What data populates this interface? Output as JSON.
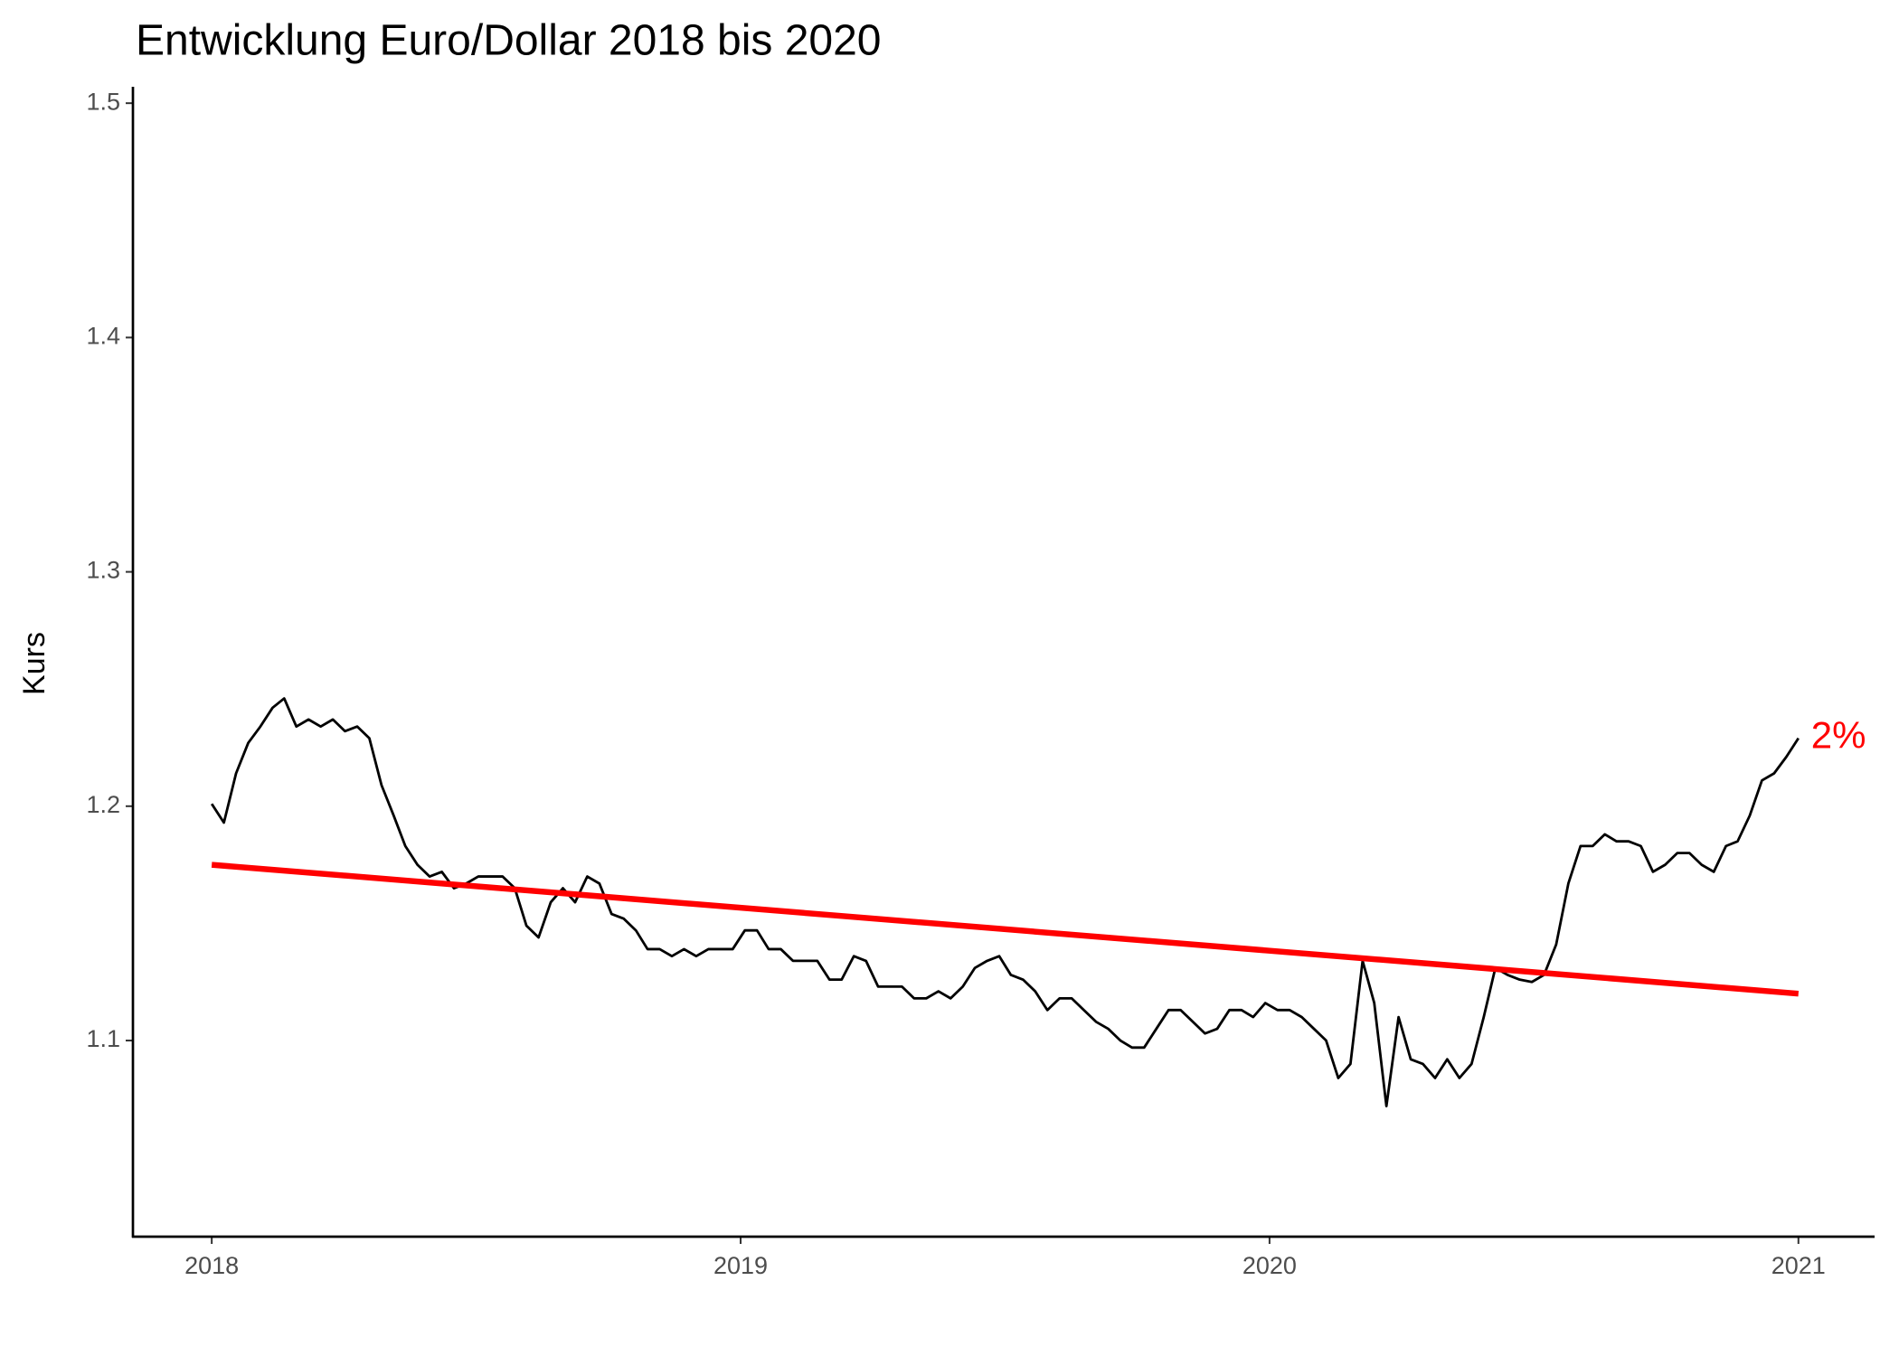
{
  "chart_data": {
    "type": "line",
    "title": "Entwicklung Euro/Dollar 2018 bis 2020",
    "y_label": "Kurs",
    "annotation": {
      "text": "2%",
      "color": "#ff0000"
    },
    "xlim": [
      2017.851,
      2021.144
    ],
    "xticks": [
      2018,
      2019,
      2020,
      2021
    ],
    "ylim": [
      1.0163,
      1.507
    ],
    "yticks": [
      1.1,
      1.2,
      1.3,
      1.4,
      1.5
    ],
    "grid": false,
    "series": [
      {
        "color": "#000000",
        "x": [
          2018.0,
          2018.023,
          2018.046,
          2018.069,
          2018.092,
          2018.115,
          2018.137,
          2018.16,
          2018.183,
          2018.206,
          2018.229,
          2018.252,
          2018.275,
          2018.298,
          2018.321,
          2018.344,
          2018.366,
          2018.389,
          2018.412,
          2018.435,
          2018.458,
          2018.481,
          2018.504,
          2018.527,
          2018.55,
          2018.573,
          2018.595,
          2018.618,
          2018.641,
          2018.664,
          2018.687,
          2018.71,
          2018.733,
          2018.756,
          2018.779,
          2018.802,
          2018.824,
          2018.847,
          2018.87,
          2018.893,
          2018.916,
          2018.939,
          2018.962,
          2018.985,
          2019.008,
          2019.031,
          2019.053,
          2019.076,
          2019.099,
          2019.122,
          2019.145,
          2019.168,
          2019.191,
          2019.214,
          2019.237,
          2019.26,
          2019.282,
          2019.305,
          2019.328,
          2019.351,
          2019.374,
          2019.397,
          2019.42,
          2019.443,
          2019.466,
          2019.489,
          2019.511,
          2019.534,
          2019.557,
          2019.58,
          2019.603,
          2019.626,
          2019.649,
          2019.672,
          2019.695,
          2019.718,
          2019.74,
          2019.763,
          2019.786,
          2019.809,
          2019.832,
          2019.855,
          2019.878,
          2019.901,
          2019.924,
          2019.947,
          2019.969,
          2019.992,
          2020.015,
          2020.038,
          2020.061,
          2020.084,
          2020.107,
          2020.13,
          2020.153,
          2020.176,
          2020.198,
          2020.221,
          2020.244,
          2020.267,
          2020.29,
          2020.313,
          2020.336,
          2020.359,
          2020.382,
          2020.405,
          2020.427,
          2020.45,
          2020.473,
          2020.496,
          2020.519,
          2020.542,
          2020.565,
          2020.588,
          2020.611,
          2020.634,
          2020.656,
          2020.679,
          2020.702,
          2020.725,
          2020.748,
          2020.771,
          2020.794,
          2020.817,
          2020.84,
          2020.863,
          2020.885,
          2020.908,
          2020.931,
          2020.954,
          2020.977,
          2021.0
        ],
        "values": [
          1.201,
          1.193,
          1.214,
          1.227,
          1.234,
          1.242,
          1.246,
          1.234,
          1.237,
          1.234,
          1.237,
          1.232,
          1.234,
          1.229,
          1.209,
          1.196,
          1.183,
          1.175,
          1.17,
          1.172,
          1.165,
          1.167,
          1.17,
          1.17,
          1.17,
          1.165,
          1.149,
          1.144,
          1.159,
          1.165,
          1.159,
          1.17,
          1.167,
          1.154,
          1.152,
          1.147,
          1.139,
          1.139,
          1.136,
          1.139,
          1.136,
          1.139,
          1.139,
          1.139,
          1.147,
          1.147,
          1.139,
          1.139,
          1.134,
          1.134,
          1.134,
          1.126,
          1.126,
          1.136,
          1.134,
          1.123,
          1.123,
          1.123,
          1.118,
          1.118,
          1.121,
          1.118,
          1.123,
          1.131,
          1.134,
          1.136,
          1.128,
          1.126,
          1.121,
          1.113,
          1.118,
          1.118,
          1.113,
          1.108,
          1.105,
          1.1,
          1.097,
          1.097,
          1.105,
          1.113,
          1.113,
          1.108,
          1.103,
          1.105,
          1.113,
          1.113,
          1.11,
          1.116,
          1.113,
          1.113,
          1.11,
          1.105,
          1.1,
          1.084,
          1.09,
          1.134,
          1.116,
          1.072,
          1.11,
          1.092,
          1.09,
          1.084,
          1.092,
          1.084,
          1.09,
          1.11,
          1.131,
          1.128,
          1.126,
          1.125,
          1.128,
          1.141,
          1.167,
          1.183,
          1.183,
          1.188,
          1.185,
          1.185,
          1.183,
          1.172,
          1.175,
          1.18,
          1.18,
          1.175,
          1.172,
          1.183,
          1.185,
          1.196,
          1.211,
          1.214,
          1.221,
          1.229
        ]
      },
      {
        "color": "#ff0000",
        "x": [
          2018,
          2021
        ],
        "values": [
          1.175,
          1.12
        ]
      }
    ]
  }
}
